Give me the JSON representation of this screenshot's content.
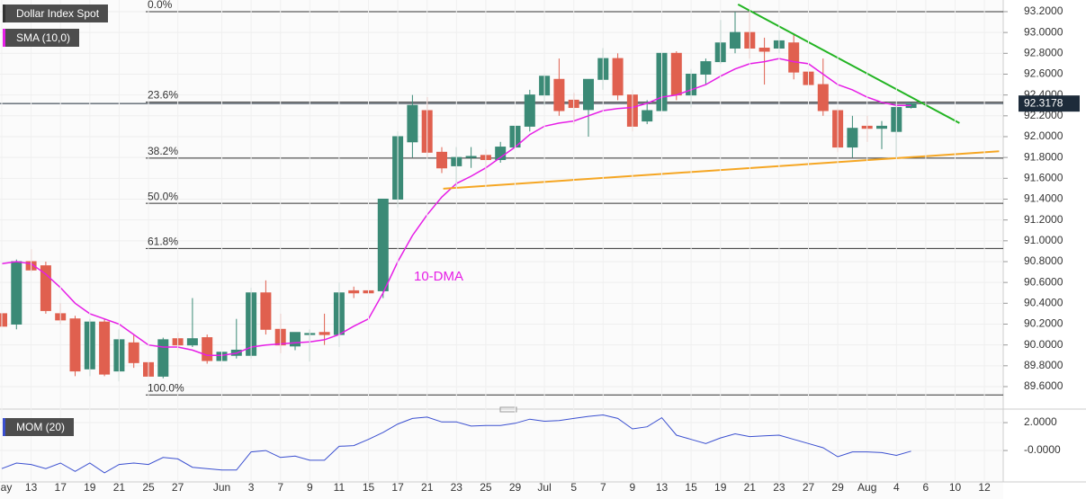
{
  "chart_data": {
    "type": "candlestick",
    "title": "Dollar Index Spot",
    "categories": [
      "May",
      null,
      "13",
      null,
      "17",
      null,
      "19",
      null,
      "21",
      null,
      "25",
      null,
      "27",
      null,
      null,
      "Jun",
      null,
      "3",
      null,
      "7",
      null,
      "9",
      null,
      "11",
      null,
      "15",
      null,
      "17",
      null,
      "21",
      null,
      "23",
      null,
      "25",
      null,
      "29",
      null,
      "Jul",
      null,
      "5",
      null,
      "7",
      null,
      "9",
      null,
      "13",
      null,
      "15",
      null,
      "19",
      null,
      "21",
      null,
      "23",
      null,
      "27",
      null,
      "29",
      null,
      "Aug",
      null,
      "4",
      null,
      "6",
      null,
      "10",
      null,
      "12"
    ],
    "open": [
      90.3,
      90.2,
      90.8,
      90.76,
      90.3,
      90.25,
      89.77,
      90.22,
      89.75,
      90.02,
      89.83,
      89.7,
      90.06,
      90.0,
      90.07,
      89.85,
      89.9,
      89.9,
      90.5,
      90.15,
      89.99,
      90.1,
      90.12,
      90.1,
      90.52,
      90.52,
      90.52,
      91.4,
      91.95,
      92.25,
      91.85,
      91.72,
      91.8,
      91.82,
      91.78,
      91.9,
      92.1,
      92.4,
      92.55,
      92.35,
      92.26,
      92.55,
      92.75,
      92.4,
      92.15,
      92.25,
      92.8,
      92.4,
      92.6,
      92.72,
      92.85,
      93.0,
      92.85,
      92.85,
      92.9,
      92.62,
      92.5,
      92.25,
      91.9,
      92.1,
      92.08,
      92.05,
      92.28,
      null,
      null,
      null,
      null,
      null
    ],
    "high": [
      90.4,
      90.82,
      90.92,
      90.8,
      90.4,
      90.28,
      90.25,
      90.25,
      90.15,
      90.1,
      89.88,
      90.07,
      90.12,
      90.45,
      90.1,
      90.0,
      90.25,
      90.55,
      90.62,
      90.3,
      90.12,
      90.15,
      90.3,
      90.6,
      90.56,
      90.68,
      91.4,
      92.05,
      92.4,
      92.38,
      91.9,
      91.9,
      91.9,
      91.88,
      91.95,
      92.2,
      92.45,
      92.6,
      92.75,
      92.42,
      92.55,
      92.85,
      92.8,
      92.45,
      92.35,
      92.82,
      92.82,
      92.65,
      92.75,
      93.12,
      93.2,
      93.2,
      92.95,
      93.02,
      92.98,
      92.72,
      92.75,
      92.27,
      92.2,
      92.2,
      92.15,
      92.3,
      92.33,
      null,
      null,
      null,
      null,
      null
    ],
    "low": [
      90.15,
      90.15,
      90.7,
      90.3,
      90.2,
      89.7,
      89.7,
      89.7,
      89.65,
      89.78,
      89.53,
      89.68,
      89.95,
      89.98,
      89.82,
      89.66,
      89.87,
      89.87,
      90.1,
      89.92,
      89.95,
      89.84,
      90.0,
      89.98,
      90.45,
      90.48,
      90.45,
      91.32,
      91.8,
      91.8,
      91.65,
      91.5,
      91.7,
      91.55,
      91.75,
      91.85,
      92.05,
      92.3,
      92.2,
      92.12,
      92.0,
      92.45,
      92.35,
      92.05,
      92.12,
      92.15,
      92.35,
      92.28,
      92.5,
      92.7,
      92.8,
      92.75,
      92.5,
      92.8,
      92.55,
      92.35,
      92.2,
      91.85,
      91.8,
      91.95,
      91.88,
      91.8,
      92.27,
      null,
      null,
      null,
      null,
      null
    ],
    "close": [
      90.18,
      90.8,
      90.72,
      90.33,
      90.24,
      89.75,
      90.22,
      89.72,
      90.05,
      89.83,
      89.7,
      90.05,
      90.0,
      90.06,
      89.85,
      89.93,
      89.95,
      90.5,
      90.15,
      90.0,
      90.12,
      90.11,
      90.1,
      90.5,
      90.5,
      90.5,
      91.4,
      92.0,
      92.3,
      91.85,
      91.7,
      91.8,
      91.81,
      91.78,
      91.9,
      92.1,
      92.4,
      92.58,
      92.25,
      92.28,
      92.55,
      92.75,
      92.4,
      92.1,
      92.25,
      92.8,
      92.4,
      92.6,
      92.72,
      92.9,
      93.0,
      92.85,
      92.82,
      92.92,
      92.62,
      92.5,
      92.25,
      91.9,
      92.08,
      92.08,
      92.1,
      92.28,
      92.32,
      null,
      null,
      null,
      null,
      null
    ],
    "up_color": "#3b8a76",
    "down_color": "#e0604f",
    "ylim": [
      89.41,
      93.312
    ],
    "yticks": [
      {
        "value": 89.6,
        "label": "89.6000"
      },
      {
        "value": 89.8,
        "label": "89.8000"
      },
      {
        "value": 90.0,
        "label": "90.0000"
      },
      {
        "value": 90.2,
        "label": "90.2000"
      },
      {
        "value": 90.4,
        "label": "90.4000"
      },
      {
        "value": 90.6,
        "label": "90.6000"
      },
      {
        "value": 90.8,
        "label": "90.8000"
      },
      {
        "value": 91.0,
        "label": "91.0000"
      },
      {
        "value": 91.2,
        "label": "91.2000"
      },
      {
        "value": 91.4,
        "label": "91.4000"
      },
      {
        "value": 91.6,
        "label": "91.6000"
      },
      {
        "value": 91.8,
        "label": "91.8000"
      },
      {
        "value": 92.0,
        "label": "92.0000"
      },
      {
        "value": 92.2,
        "label": "92.2000"
      },
      {
        "value": 92.4,
        "label": "92.4000"
      },
      {
        "value": 92.6,
        "label": "92.6000"
      },
      {
        "value": 92.8,
        "label": "92.8000"
      },
      {
        "value": 93.0,
        "label": "93.0000"
      },
      {
        "value": 93.2,
        "label": "93.2000"
      }
    ],
    "grid": true,
    "last_price": 92.3178,
    "sma": {
      "name": "SMA (10,0)",
      "color": "#e61ee6",
      "annotation": "10-DMA",
      "values": [
        90.78,
        90.8,
        90.78,
        90.68,
        90.55,
        90.4,
        90.3,
        90.25,
        90.2,
        90.1,
        90.0,
        89.98,
        89.98,
        89.95,
        89.9,
        89.9,
        89.92,
        89.98,
        90.0,
        90.01,
        90.02,
        90.03,
        90.05,
        90.1,
        90.18,
        90.25,
        90.5,
        90.8,
        91.05,
        91.25,
        91.42,
        91.55,
        91.62,
        91.7,
        91.8,
        91.9,
        92.02,
        92.1,
        92.13,
        92.15,
        92.2,
        92.25,
        92.27,
        92.28,
        92.32,
        92.38,
        92.4,
        92.45,
        92.5,
        92.58,
        92.65,
        92.7,
        92.72,
        92.75,
        92.72,
        92.7,
        92.6,
        92.5,
        92.45,
        92.38,
        92.33,
        92.3,
        92.3,
        null,
        null,
        null,
        null,
        null
      ]
    },
    "fibonacci": {
      "high": 93.2,
      "low": 89.52,
      "levels": [
        {
          "value": 0,
          "label": "0.0%"
        },
        {
          "value": 23.6,
          "label": "23.6%"
        },
        {
          "value": 38.2,
          "label": "38.2%"
        },
        {
          "value": 50,
          "label": "50.0%"
        },
        {
          "value": 61.8,
          "label": "61.8%"
        },
        {
          "value": 100,
          "label": "100.0%"
        }
      ]
    },
    "trendlines": [
      {
        "color": "#22b422",
        "x": [
          50.2,
          65.3
        ],
        "y": [
          93.27,
          92.13
        ]
      },
      {
        "color": "#f5a623",
        "x": [
          30.1,
          68.0
        ],
        "y": [
          91.5,
          91.86
        ]
      }
    ],
    "momentum": {
      "name": "MOM (20)",
      "color": "#3a4fd0",
      "ylim": [
        -2.19,
        2.52
      ],
      "yticks": [
        {
          "value": 0,
          "label": "-0.0000"
        },
        {
          "value": 2,
          "label": "2.0000"
        }
      ],
      "values": [
        -1.3,
        -0.9,
        -1.0,
        -1.3,
        -0.9,
        -1.5,
        -0.9,
        -1.6,
        -1.0,
        -0.9,
        -1.0,
        -0.5,
        -0.6,
        -1.2,
        -1.3,
        -1.4,
        -1.4,
        -0.1,
        0.0,
        -0.5,
        -0.4,
        -0.7,
        -0.7,
        0.3,
        0.35,
        0.8,
        1.3,
        1.9,
        2.3,
        2.4,
        2.05,
        2.05,
        1.75,
        1.8,
        1.8,
        1.95,
        2.25,
        2.1,
        2.15,
        2.3,
        2.45,
        2.55,
        2.3,
        1.55,
        1.7,
        2.35,
        1.1,
        0.8,
        0.5,
        0.9,
        1.2,
        1.0,
        1.05,
        1.1,
        0.8,
        0.5,
        0.2,
        -0.45,
        -0.1,
        -0.1,
        -0.15,
        -0.35,
        -0.05,
        null,
        null,
        null,
        null,
        null
      ]
    }
  }
}
